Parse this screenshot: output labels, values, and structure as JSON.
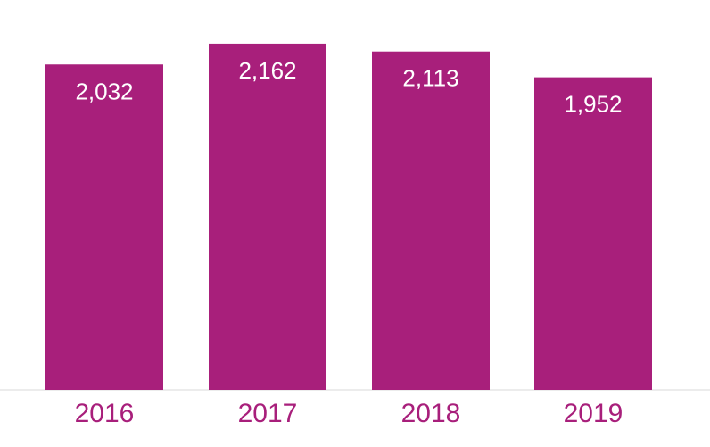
{
  "chart_data": {
    "type": "bar",
    "categories": [
      "2016",
      "2017",
      "2018",
      "2019"
    ],
    "values": [
      2032,
      2162,
      2113,
      1952
    ],
    "data_labels": [
      "2,032",
      "2,162",
      "2,113",
      "1,952"
    ],
    "title": "",
    "xlabel": "",
    "ylabel": "",
    "ylim": [
      0,
      2400
    ],
    "grid": false,
    "legend": "none",
    "colors": {
      "bar": "#a81f7b",
      "tick_label": "#a81f7b",
      "data_label": "#ffffff",
      "baseline": "#d9d9d9"
    }
  }
}
